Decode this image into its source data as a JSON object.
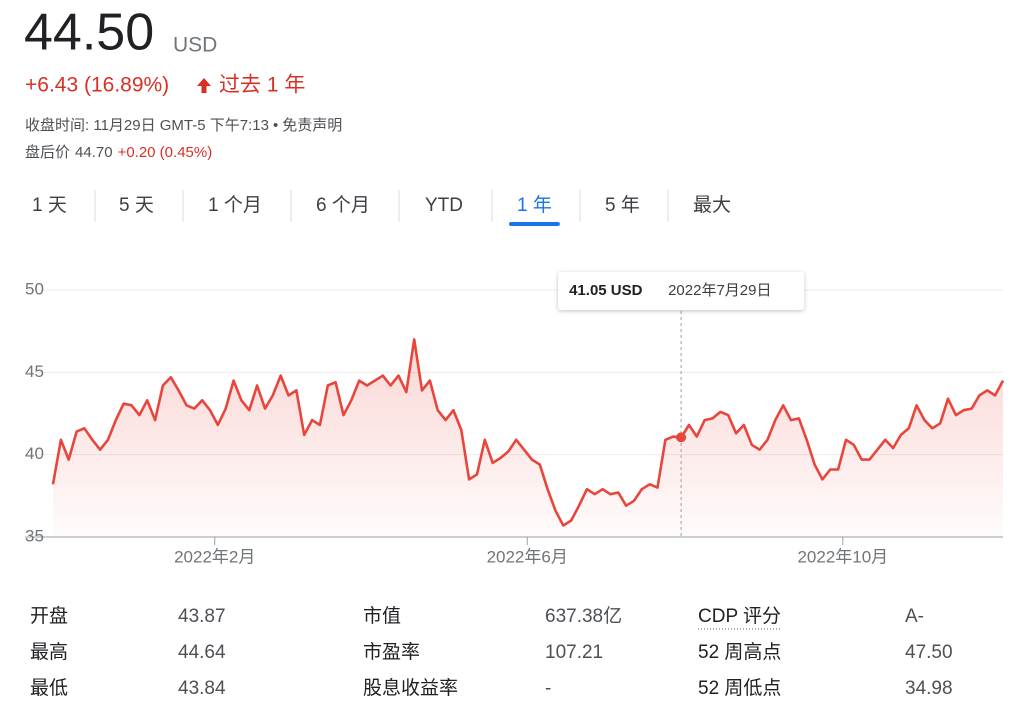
{
  "quote": {
    "price": "44.50",
    "currency": "USD",
    "change": "+6.43 (16.89%)",
    "period": "过去 1 年",
    "close_time": "收盘时间: 11月29日 GMT-5 下午7:13",
    "separator": "•",
    "disclaimer": "免责声明",
    "after_hours_label": "盘后价",
    "after_hours_price": "44.70",
    "after_hours_change": "+0.20 (0.45%)"
  },
  "tabs": [
    "1 天",
    "5 天",
    "1 个月",
    "6 个月",
    "YTD",
    "1 年",
    "5 年",
    "最大"
  ],
  "active_tab": 5,
  "chart_data": {
    "type": "line",
    "color": "#e8453c",
    "grid": true,
    "values": [
      38.2,
      40.9,
      39.7,
      41.4,
      41.6,
      40.9,
      40.3,
      40.9,
      42.1,
      43.1,
      43.0,
      42.4,
      43.3,
      42.1,
      44.2,
      44.7,
      43.9,
      43.0,
      42.8,
      43.3,
      42.7,
      41.8,
      42.8,
      44.5,
      43.3,
      42.7,
      44.2,
      42.8,
      43.6,
      44.8,
      43.6,
      43.9,
      41.2,
      42.1,
      41.8,
      44.2,
      44.4,
      42.4,
      43.3,
      44.5,
      44.2,
      44.5,
      44.8,
      44.2,
      44.8,
      43.8,
      47.0,
      43.9,
      44.5,
      42.7,
      42.1,
      42.7,
      41.5,
      38.5,
      38.8,
      40.9,
      39.5,
      39.8,
      40.2,
      40.9,
      40.3,
      39.7,
      39.4,
      37.9,
      36.6,
      35.7,
      36.0,
      36.9,
      37.9,
      37.6,
      37.9,
      37.6,
      37.7,
      36.9,
      37.2,
      37.9,
      38.2,
      38.0,
      40.9,
      41.1,
      41.05,
      41.8,
      41.1,
      42.1,
      42.2,
      42.6,
      42.4,
      41.3,
      41.8,
      40.6,
      40.3,
      40.9,
      42.1,
      43.0,
      42.1,
      42.2,
      40.9,
      39.4,
      38.5,
      39.1,
      39.1,
      40.9,
      40.6,
      39.7,
      39.7,
      40.3,
      40.9,
      40.4,
      41.2,
      41.6,
      43.0,
      42.1,
      41.6,
      41.9,
      43.4,
      42.4,
      42.7,
      42.8,
      43.6,
      43.9,
      43.6,
      44.5
    ],
    "xlim": [
      0,
      121
    ],
    "xticks": [
      {
        "value": 20.6,
        "label": "2022年2月"
      },
      {
        "value": 60.4,
        "label": "2022年6月"
      },
      {
        "value": 100.6,
        "label": "2022年10月"
      }
    ],
    "ylim": [
      35,
      50
    ],
    "yticks": [
      35,
      40,
      45,
      50
    ],
    "highlight_index": 80,
    "tooltip": {
      "price": "41.05 USD",
      "date": "2022年7月29日"
    }
  },
  "stats": {
    "rows": [
      [
        "开盘",
        "43.87",
        "市值",
        "637.38亿",
        "CDP 评分",
        "A-"
      ],
      [
        "最高",
        "44.64",
        "市盈率",
        "107.21",
        "52 周高点",
        "47.50"
      ],
      [
        "最低",
        "43.84",
        "股息收益率",
        "-",
        "52 周低点",
        "34.98"
      ]
    ]
  }
}
